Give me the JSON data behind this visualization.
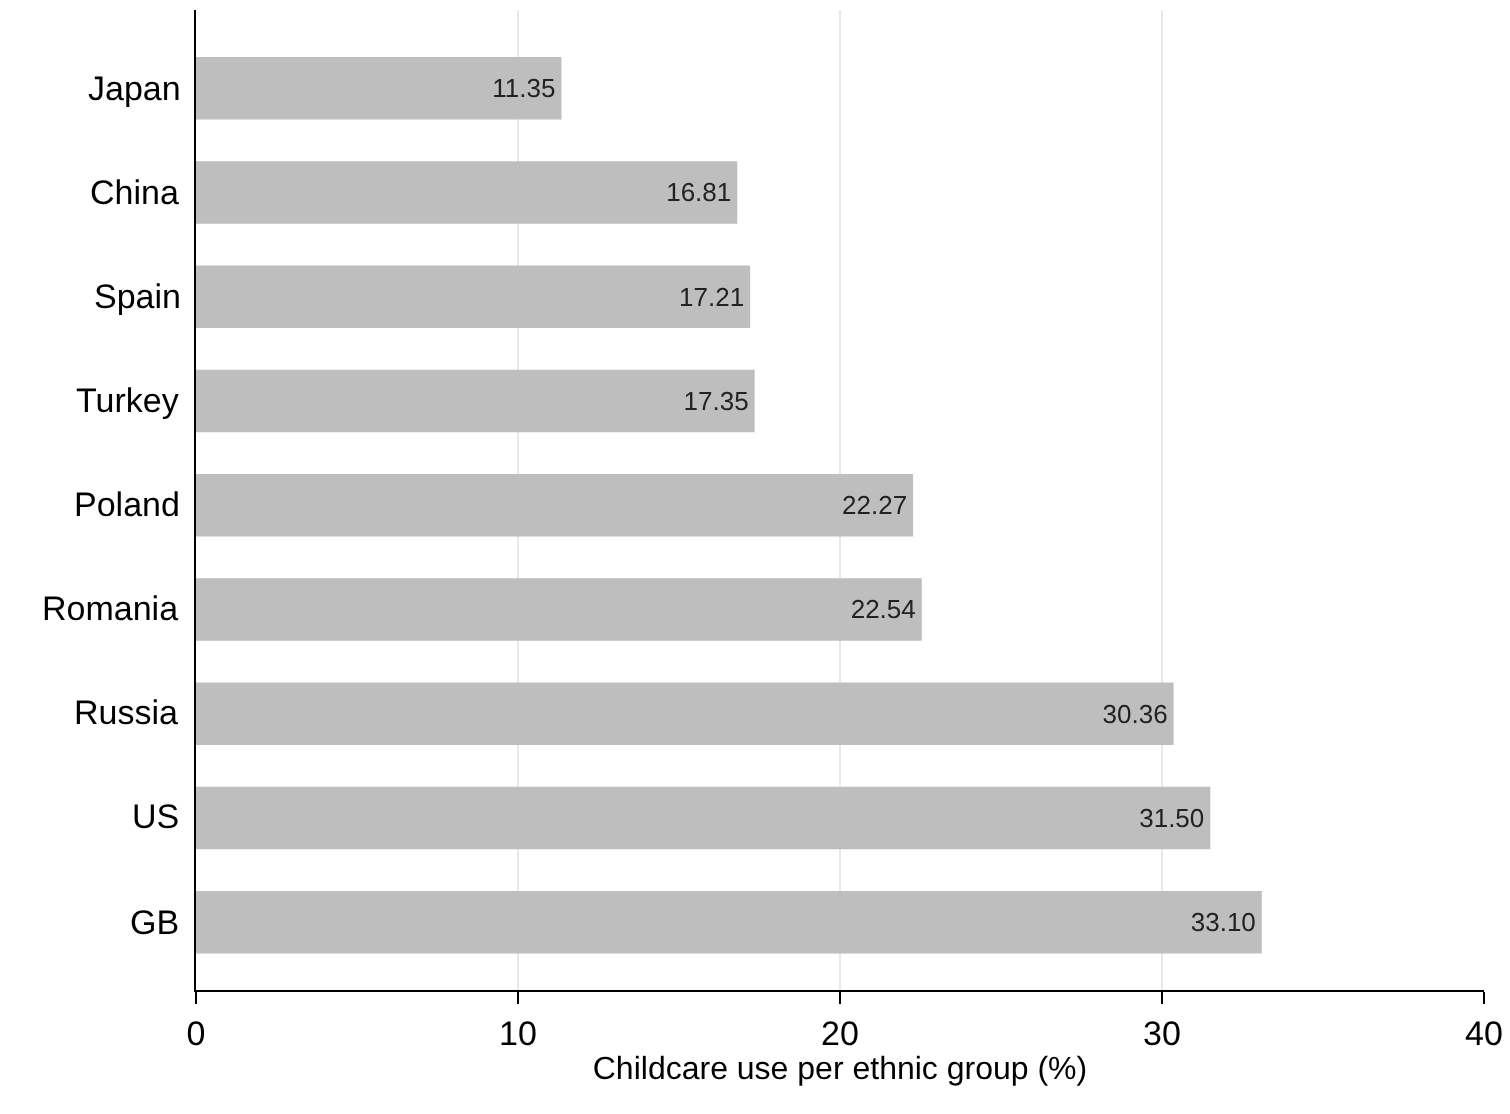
{
  "chart_data": {
    "type": "bar",
    "orientation": "horizontal",
    "xlabel": "Childcare use per ethnic group (%)",
    "categories": [
      "Japan",
      "China",
      "Spain",
      "Turkey",
      "Poland",
      "Romania",
      "Russia",
      "US",
      "GB"
    ],
    "values": [
      11.35,
      16.81,
      17.21,
      17.35,
      22.27,
      22.54,
      30.36,
      31.5,
      33.1
    ],
    "value_labels": [
      "11.35",
      "16.81",
      "17.21",
      "17.35",
      "22.27",
      "22.54",
      "30.36",
      "31.50",
      "33.10"
    ],
    "color": "#bebebe",
    "xlim": [
      0,
      40
    ],
    "xticks": [
      0,
      10,
      20,
      30,
      40
    ],
    "grid": "x",
    "legend": false
  }
}
